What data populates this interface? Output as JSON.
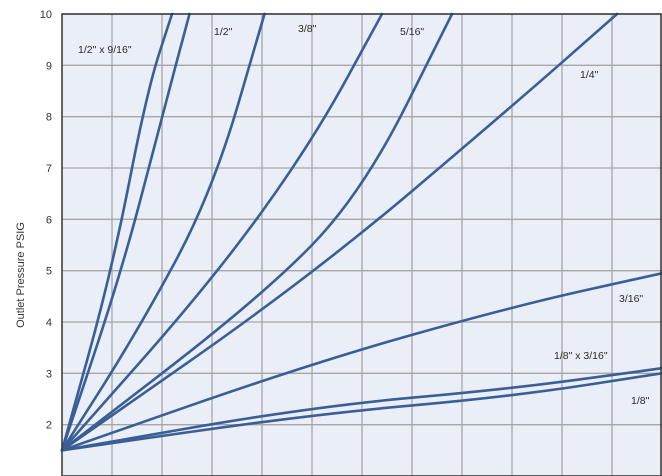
{
  "chart_data": {
    "type": "line",
    "ylabel": "Outlet Pressure   PSIG",
    "xlabel": "",
    "title": "",
    "ylim": [
      1,
      10
    ],
    "y_ticks": [
      "2",
      "3",
      "4",
      "5",
      "6",
      "7",
      "8",
      "9",
      "10"
    ],
    "xlim": [
      0,
      12
    ],
    "x_gridlines": 12,
    "grid": true,
    "colors": {
      "line": "#3a5e96",
      "grid": "#a6a6a6",
      "background": "#eaeef6",
      "border": "#333333"
    },
    "series": [
      {
        "name": "1/2\" x 9/16\"",
        "label_text": "1/2\" x 9/16\"",
        "x": [
          0,
          1,
          1.7,
          2.2
        ],
        "y": [
          1.5,
          5.0,
          8.5,
          10
        ]
      },
      {
        "name": "1/2\" x 9/16\" (b)",
        "label_text": "",
        "x": [
          0,
          1.2,
          2.0,
          2.55
        ],
        "y": [
          1.5,
          5.0,
          8.0,
          10
        ]
      },
      {
        "name": "1/2\"",
        "label_text": "1/2\"",
        "x": [
          0,
          1.5,
          3.0,
          4.05
        ],
        "y": [
          1.5,
          3.8,
          6.5,
          10
        ]
      },
      {
        "name": "3/8\"",
        "label_text": "3/8\"",
        "x": [
          0,
          3.0,
          5.0,
          6.4
        ],
        "y": [
          1.5,
          4.8,
          7.5,
          10
        ]
      },
      {
        "name": "5/16\"",
        "label_text": "5/16\"",
        "x": [
          0,
          4.0,
          6.0,
          7.8
        ],
        "y": [
          1.5,
          4.5,
          6.5,
          10
        ]
      },
      {
        "name": "1/4\"",
        "label_text": "1/4\"",
        "x": [
          0,
          5.0,
          9.0,
          11.1
        ],
        "y": [
          1.5,
          4.9,
          8.2,
          10
        ]
      },
      {
        "name": "3/16\"",
        "label_text": "3/16\"",
        "x": [
          0,
          5.0,
          9.0,
          12
        ],
        "y": [
          1.5,
          3.2,
          4.3,
          4.95
        ]
      },
      {
        "name": "1/8\" x 3/16\"",
        "label_text": "1/8\" x 3/16\"",
        "x": [
          0,
          5.0,
          9.0,
          12
        ],
        "y": [
          1.5,
          2.35,
          2.7,
          3.1
        ]
      },
      {
        "name": "1/8\"",
        "label_text": "1/8\"",
        "x": [
          0,
          5.0,
          9.0,
          12
        ],
        "y": [
          1.5,
          2.2,
          2.55,
          3.0
        ]
      }
    ]
  }
}
